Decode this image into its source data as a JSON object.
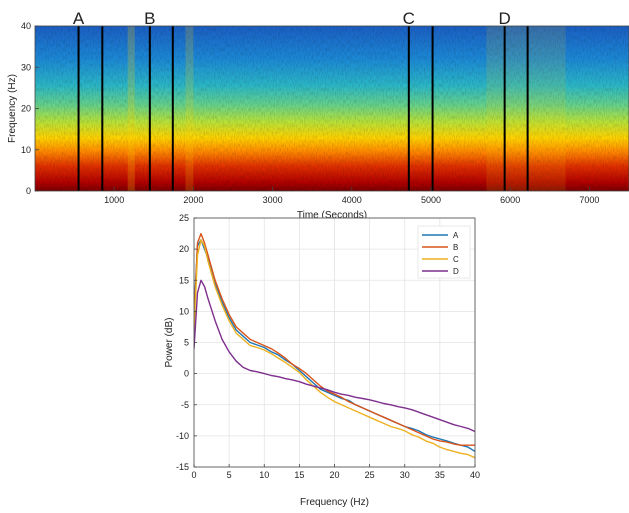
{
  "chart_data": [
    {
      "type": "heatmap",
      "title": "",
      "xlabel": "Time (Seconds)",
      "ylabel": "Frequency (Hz)",
      "xlim": [
        0,
        7500
      ],
      "ylim": [
        0,
        40
      ],
      "x_ticks": [
        1000,
        2000,
        3000,
        4000,
        5000,
        6000,
        7000
      ],
      "y_ticks": [
        0,
        10,
        20,
        30,
        40
      ],
      "colormap": "jet",
      "segments": [
        {
          "label": "A",
          "start": 550,
          "end": 850
        },
        {
          "label": "B",
          "start": 1450,
          "end": 1740
        },
        {
          "label": "C",
          "start": 4720,
          "end": 5020
        },
        {
          "label": "D",
          "start": 5930,
          "end": 6220
        }
      ]
    },
    {
      "type": "line",
      "title": "",
      "xlabel": "Frequency (Hz)",
      "ylabel": "Power (dB)",
      "xlim": [
        0,
        40
      ],
      "ylim": [
        -15,
        25
      ],
      "x_ticks": [
        0,
        5,
        10,
        15,
        20,
        25,
        30,
        35,
        40
      ],
      "y_ticks": [
        -15,
        -10,
        -5,
        0,
        5,
        10,
        15,
        20,
        25
      ],
      "grid": true,
      "legend_position": "top-right",
      "x": [
        0,
        0.5,
        1,
        1.5,
        2,
        3,
        4,
        5,
        6,
        7,
        8,
        9,
        10,
        11,
        12,
        13,
        14,
        15,
        16,
        17,
        18,
        19,
        20,
        21,
        22,
        23,
        24,
        25,
        26,
        27,
        28,
        29,
        30,
        31,
        32,
        33,
        34,
        35,
        36,
        37,
        38,
        39,
        40
      ],
      "series": [
        {
          "name": "A",
          "color": "#1f77b4",
          "values": [
            10,
            20.5,
            21.5,
            20,
            18.5,
            14.5,
            11.5,
            9,
            7,
            6,
            5,
            4.6,
            4.2,
            3.5,
            3.0,
            2.2,
            1.5,
            0.5,
            -0.5,
            -1.5,
            -2.5,
            -3.0,
            -3.5,
            -4.0,
            -4.3,
            -5.0,
            -5.5,
            -6.0,
            -6.5,
            -7.0,
            -7.5,
            -8.0,
            -8.5,
            -8.8,
            -9.2,
            -9.8,
            -10.2,
            -10.5,
            -10.8,
            -11.2,
            -11.5,
            -11.8,
            -12.5
          ]
        },
        {
          "name": "B",
          "color": "#d9541a",
          "values": [
            8,
            21,
            22.5,
            21,
            19,
            15,
            12,
            9.5,
            7.5,
            6.5,
            5.5,
            5.0,
            4.5,
            4.0,
            3.3,
            2.5,
            1.5,
            0.8,
            0.0,
            -1.0,
            -2.0,
            -2.8,
            -3.3,
            -3.8,
            -4.5,
            -5.0,
            -5.5,
            -6.0,
            -6.5,
            -7.0,
            -7.5,
            -8.0,
            -8.5,
            -9.0,
            -9.5,
            -10.0,
            -10.5,
            -10.8,
            -11.0,
            -11.3,
            -11.5,
            -11.5,
            -11.5
          ]
        },
        {
          "name": "C",
          "color": "#edb120",
          "values": [
            7,
            19,
            21.5,
            20.5,
            18,
            14,
            11,
            8.5,
            6.5,
            5.5,
            4.5,
            4.2,
            3.8,
            3.2,
            2.5,
            1.8,
            1.0,
            0.2,
            -1.0,
            -2.0,
            -3.0,
            -3.8,
            -4.5,
            -5.0,
            -5.5,
            -6.0,
            -6.5,
            -7.0,
            -7.5,
            -8.0,
            -8.5,
            -8.8,
            -9.2,
            -9.8,
            -10.2,
            -10.8,
            -11.2,
            -11.8,
            -12.2,
            -12.5,
            -12.8,
            -13.0,
            -13.5
          ]
        },
        {
          "name": "D",
          "color": "#7e2f8e",
          "values": [
            4,
            13,
            15,
            14,
            12,
            8.5,
            5.5,
            3.5,
            2.0,
            1.0,
            0.5,
            0.3,
            0.0,
            -0.3,
            -0.5,
            -0.8,
            -1.0,
            -1.3,
            -1.7,
            -2.0,
            -2.3,
            -2.6,
            -3.0,
            -3.3,
            -3.5,
            -3.8,
            -4.0,
            -4.2,
            -4.5,
            -4.8,
            -5.0,
            -5.3,
            -5.5,
            -5.8,
            -6.2,
            -6.6,
            -7.0,
            -7.4,
            -7.8,
            -8.2,
            -8.5,
            -8.8,
            -9.3
          ]
        }
      ]
    }
  ]
}
